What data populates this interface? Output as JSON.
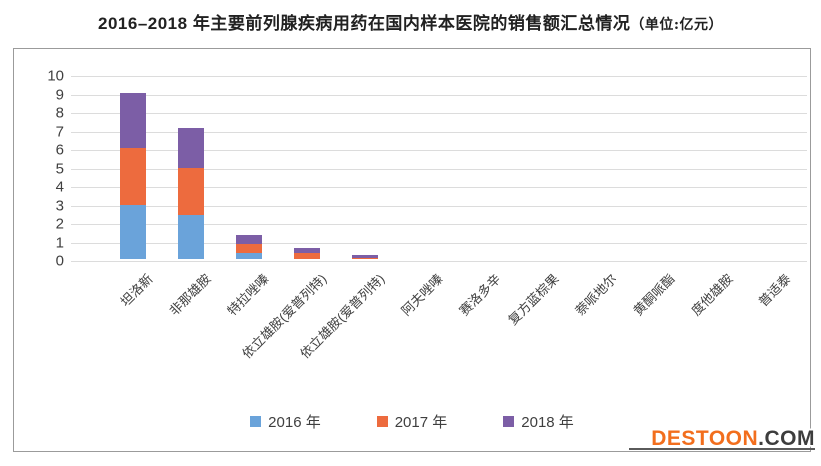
{
  "title": {
    "main": "2016–2018 年主要前列腺疾病用药在国内样本医院的销售额汇总情况",
    "unit": "（单位:亿元）"
  },
  "watermark": {
    "name": "DESTOON",
    "tld": ".COM"
  },
  "colors": {
    "series_2016": "#6aa3da",
    "series_2017": "#ed6b3e",
    "series_2018": "#7c5ea6",
    "gridline": "#dcdcdc",
    "axis_text": "#3f3f3f",
    "chart_border": "#9b9b9b",
    "watermark_name": "#f26e1d",
    "watermark_tld": "#3d3d3d"
  },
  "chart_data": {
    "type": "bar",
    "stacked": true,
    "title": "2016–2018 年主要前列腺疾病用药在国内样本医院的销售额汇总情况",
    "unit": "亿元",
    "categories": [
      "坦洛新",
      "非那雄胺",
      "特拉唑嗪",
      "依立雄胺(爱普列特)",
      "依立雄胺(爱普列特)",
      "阿夫唑嗪",
      "赛洛多辛",
      "复方蓝棕果",
      "萘哌地尔",
      "黄酮哌酯",
      "度他雄胺",
      "普适泰"
    ],
    "series": [
      {
        "name": "2016 年",
        "color": "#6aa3da",
        "values": [
          2.9,
          2.4,
          0.35,
          0,
          0,
          0,
          0,
          0,
          0,
          0,
          0,
          0
        ]
      },
      {
        "name": "2017 年",
        "color": "#ed6b3e",
        "values": [
          3.1,
          2.5,
          0.45,
          0.3,
          0.05,
          0,
          0,
          0,
          0,
          0,
          0,
          0
        ]
      },
      {
        "name": "2018 年",
        "color": "#7c5ea6",
        "values": [
          3.0,
          2.2,
          0.5,
          0.3,
          0.15,
          0,
          0,
          0,
          0,
          0,
          0,
          0
        ]
      }
    ],
    "ylim": [
      0,
      10
    ],
    "yticks": [
      0,
      1,
      2,
      3,
      4,
      5,
      6,
      7,
      8,
      9,
      10
    ],
    "grid": true,
    "legend_position": "bottom"
  }
}
